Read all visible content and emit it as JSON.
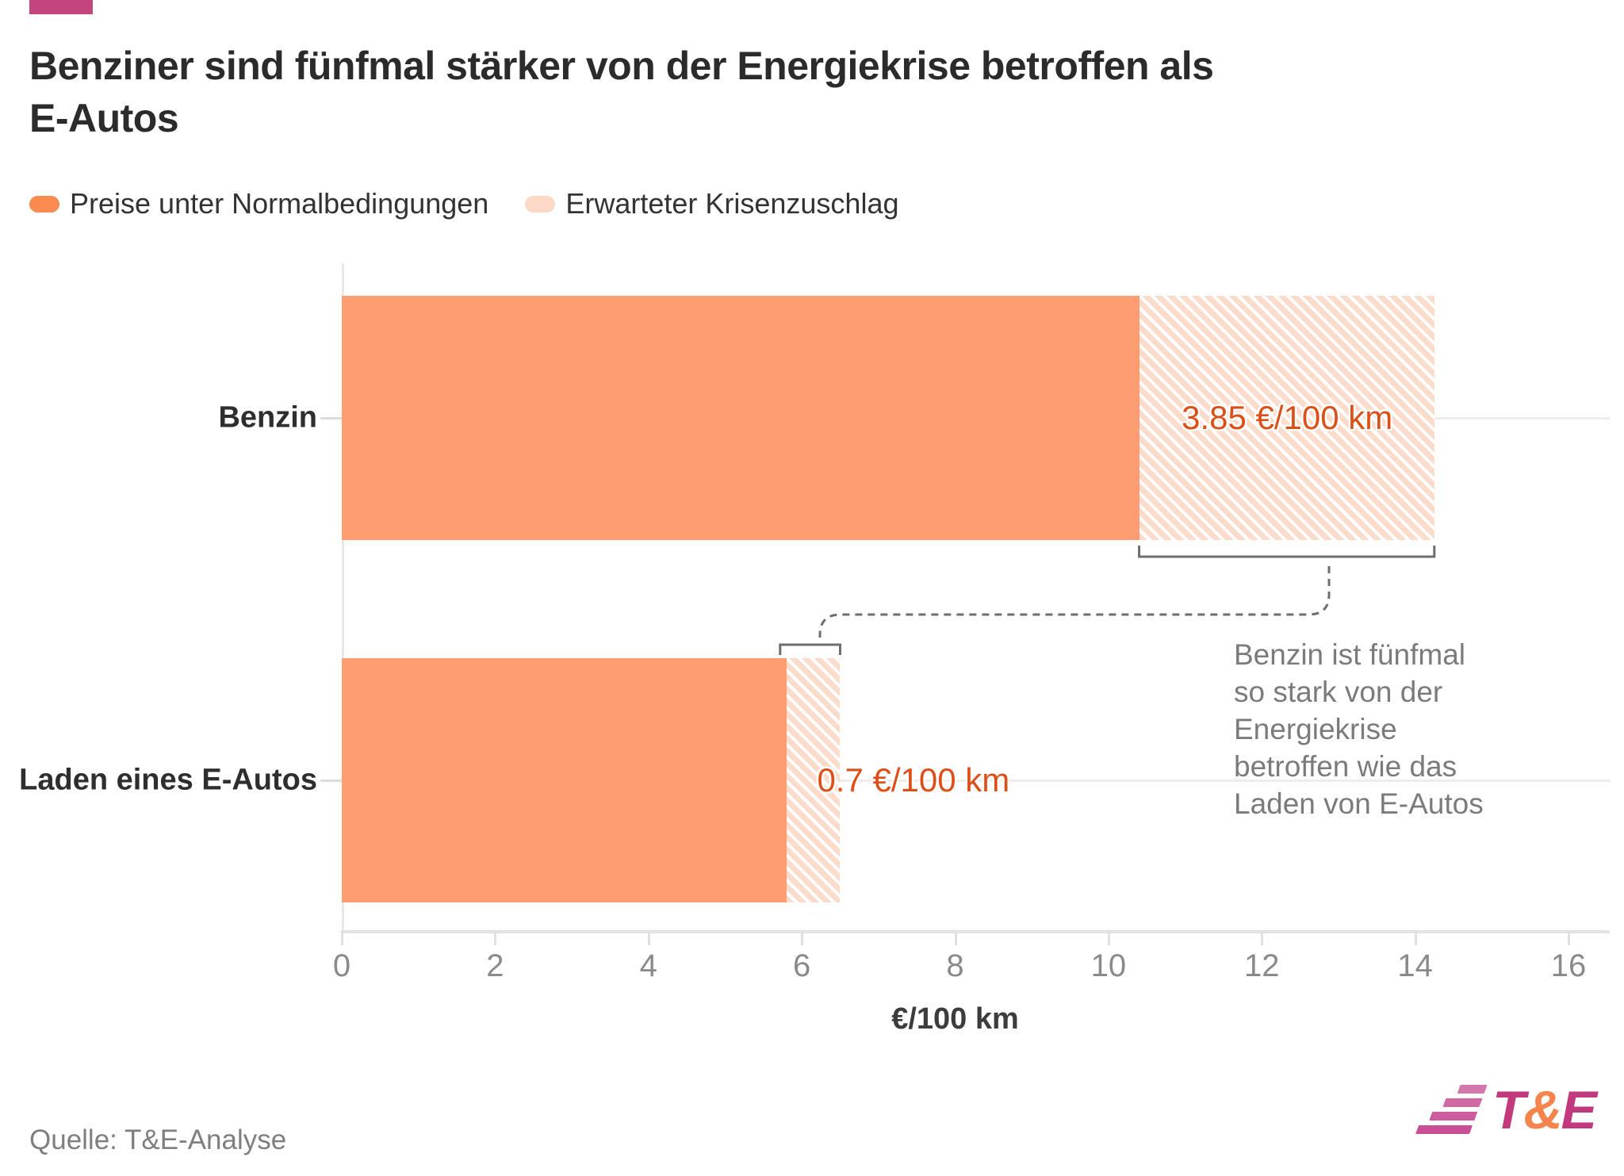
{
  "accent_color": "#c2457f",
  "title": {
    "line1": "Benziner sind fünfmal stärker von der Energiekrise betroffen als",
    "line2": "E-Autos"
  },
  "legend": {
    "items": [
      {
        "label": "Preise unter Normalbedingungen",
        "color": "#f98b50",
        "style": "solid"
      },
      {
        "label": "Erwarteter Krisenzuschlag",
        "color": "#fbd9c6",
        "style": "hatch"
      }
    ]
  },
  "chart_data": {
    "type": "bar",
    "orientation": "horizontal",
    "title": "Benziner sind fünfmal stärker von der Energiekrise betroffen als E-Autos",
    "categories": [
      "Benzin",
      "Laden eines E-Autos"
    ],
    "series": [
      {
        "name": "Preise unter Normalbedingungen",
        "values": [
          10.4,
          5.8
        ]
      },
      {
        "name": "Erwarteter Krisenzuschlag",
        "values": [
          3.85,
          0.7
        ]
      }
    ],
    "totals": [
      14.25,
      6.5
    ],
    "xlim": [
      0,
      16
    ],
    "x_ticks": [
      0,
      2,
      4,
      6,
      8,
      10,
      12,
      14,
      16
    ],
    "xlabel": "€/100 km",
    "grid": "category-lines",
    "legend_position": "top-left",
    "value_labels": [
      {
        "text": "3.85 €/100 km",
        "bar": 0,
        "x": 12.33,
        "align": "center"
      },
      {
        "text": "0.7 €/100 km",
        "bar": 1,
        "x": 6.2,
        "align": "left"
      }
    ],
    "annotation": "Benzin ist fünfmal\nso stark von der\nEnergiekrise\nbetroffen wie das\nLaden von E-Autos"
  },
  "colors": {
    "bar_solid": "#fe9d72",
    "hatch_base": "#fbdccb",
    "hatch_stripe": "#ffffff",
    "value_label": "#dc5018",
    "bracket": "#6e6e6e",
    "logo_magenta": "#c23a7d",
    "logo_orange": "#f5854c",
    "logo_stripes": [
      "#d378ad",
      "#d06aa5",
      "#cd5c9e",
      "#c94f96"
    ]
  },
  "footer": {
    "source": "Quelle: T&E-Analyse",
    "logo_t": "T",
    "logo_amp": "&",
    "logo_e": "E"
  }
}
